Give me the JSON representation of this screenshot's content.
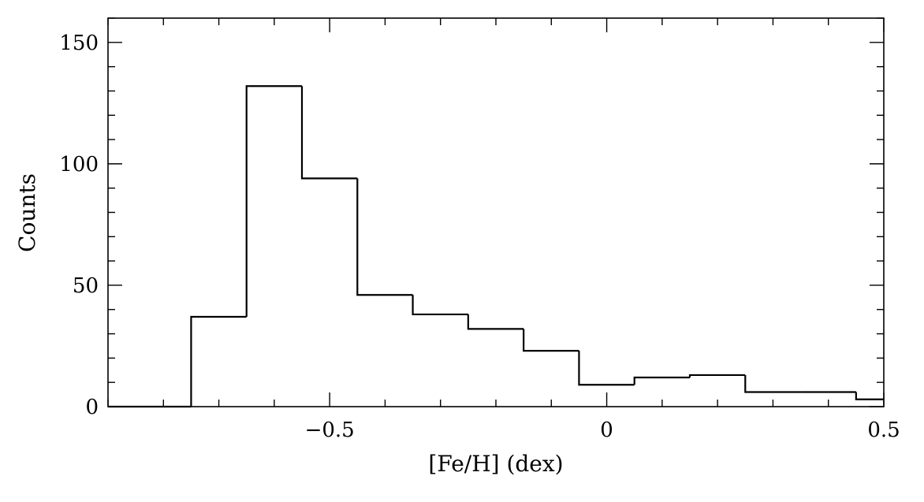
{
  "chart_data": {
    "type": "bar",
    "histogram": true,
    "title": "",
    "xlabel": "[Fe/H] (dex)",
    "ylabel": "Counts",
    "xlim": [
      -0.9,
      0.5
    ],
    "ylim": [
      0,
      160
    ],
    "grid": false,
    "legend": "none",
    "x_ticks": [
      {
        "value": -0.5,
        "label": "−0.5"
      },
      {
        "value": 0,
        "label": "0"
      },
      {
        "value": 0.5,
        "label": "0.5"
      }
    ],
    "y_ticks": [
      {
        "value": 0,
        "label": "0"
      },
      {
        "value": 50,
        "label": "50"
      },
      {
        "value": 100,
        "label": "100"
      },
      {
        "value": 150,
        "label": "150"
      }
    ],
    "x_minor_step": 0.1,
    "y_minor_step": 10,
    "bin_edges": [
      -0.9,
      -0.75,
      -0.65,
      -0.55,
      -0.45,
      -0.35,
      -0.25,
      -0.15,
      -0.05,
      0.05,
      0.15,
      0.25,
      0.35,
      0.45,
      0.5
    ],
    "values": [
      0,
      37,
      132,
      94,
      46,
      38,
      32,
      23,
      9,
      12,
      13,
      6,
      6,
      3
    ]
  }
}
